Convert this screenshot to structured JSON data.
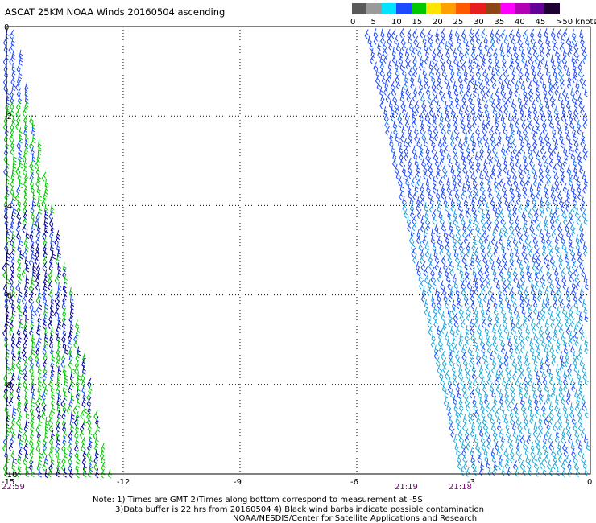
{
  "title": "ASCAT 25KM NOAA Winds 20160504 ascending",
  "colorbar": {
    "unit": "knots",
    "segments": [
      {
        "color": "#5a5a5a"
      },
      {
        "color": "#9a9a9a"
      },
      {
        "color": "#00e4ff"
      },
      {
        "color": "#1e4bff"
      },
      {
        "color": "#00c800"
      },
      {
        "color": "#ffe400"
      },
      {
        "color": "#ffa000"
      },
      {
        "color": "#ff5a00"
      },
      {
        "color": "#e61e1e"
      },
      {
        "color": "#8c4614"
      },
      {
        "color": "#ff00ff"
      },
      {
        "color": "#b400b4"
      },
      {
        "color": "#640096"
      },
      {
        "color": "#1e0032"
      }
    ],
    "labels": [
      "0",
      "5",
      "10",
      "15",
      "20",
      "25",
      "30",
      "35",
      "40",
      "45",
      ">50 knots"
    ]
  },
  "map": {
    "x_ticks": [
      "-15",
      "-12",
      "-9",
      "-6",
      "-3",
      "0"
    ],
    "y_ticks": [
      "-10",
      "-8",
      "-6",
      "-4",
      "-2",
      "0"
    ],
    "x_range": [
      -15,
      0
    ],
    "y_range": [
      -10,
      0
    ],
    "grid": "dotted",
    "times": [
      {
        "label": "22:59",
        "color": "#800080"
      },
      {
        "label": "21:19",
        "color": "#800080"
      },
      {
        "label": "21:18",
        "color": "#800080"
      }
    ],
    "swaths": [
      {
        "name": "west",
        "time": "22:59",
        "wind_speed_knots": "5-20",
        "colors": [
          "#1e4bff",
          "#00c800",
          "#0000a0"
        ]
      },
      {
        "name": "east",
        "time": "21:19",
        "wind_speed_knots": "5-15",
        "colors": [
          "#1e4bff",
          "#00a0e6"
        ]
      }
    ]
  },
  "notes": {
    "line1": "Note: 1) Times are GMT 2)Times along bottom correspond to measurement at -5S",
    "line2": "3)Data buffer is 22 hrs from 20160504 4) Black wind barbs indicate possible contamination",
    "line3": "NOAA/NESDIS/Center for Satellite Applications and Research"
  }
}
